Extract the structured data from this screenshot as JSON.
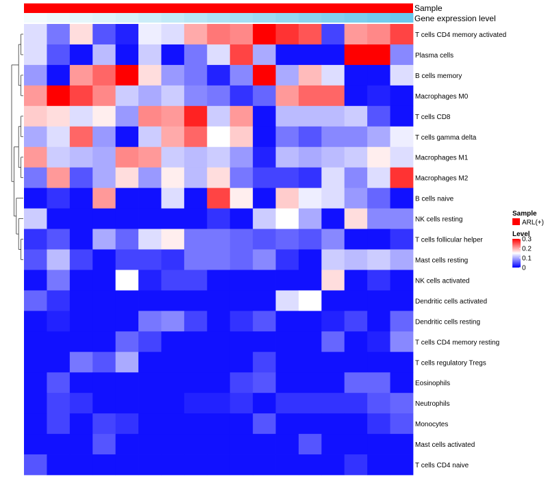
{
  "chart_data": {
    "type": "heatmap",
    "title": "",
    "annotation_rows": [
      {
        "name": "Sample",
        "kind": "categorical",
        "colors": [
          "#ff0000"
        ]
      },
      {
        "name": "Gene expression level",
        "kind": "continuous",
        "gradient": [
          "#f4fbfd",
          "#d6f1f9",
          "#ade2f5",
          "#8ad4f0",
          "#6ac8ee"
        ]
      }
    ],
    "rows": [
      "T cells CD4 memory activated",
      "Plasma cells",
      "B cells memory",
      "Macrophages M0",
      "T cells CD8",
      "T cells gamma delta",
      "Macrophages M1",
      "Macrophages M2",
      "B cells naive",
      "NK cells resting",
      "T cells follicular helper",
      "Mast cells resting",
      "NK cells activated",
      "Dendritic cells activated",
      "Dendritic cells resting",
      "T cells CD4 memory resting",
      "T cells regulatory  Tregs",
      "Eosinophils",
      "Neutrophils",
      "Monocytes",
      "Mast cells activated",
      "T cells CD4 naive"
    ],
    "n_columns": 17,
    "values": [
      [
        0.13,
        0.07,
        0.17,
        0.05,
        0.02,
        0.14,
        0.13,
        0.2,
        0.23,
        0.22,
        0.3,
        0.27,
        0.25,
        0.04,
        0.21,
        0.22,
        0.26
      ],
      [
        0.13,
        0.05,
        0.01,
        0.11,
        0.01,
        0.12,
        0.01,
        0.07,
        0.13,
        0.26,
        0.1,
        0.01,
        0.01,
        0.01,
        0.3,
        0.3,
        0.08
      ],
      [
        0.09,
        0.01,
        0.21,
        0.24,
        0.3,
        0.17,
        0.09,
        0.07,
        0.02,
        0.08,
        0.3,
        0.1,
        0.19,
        0.13,
        0.01,
        0.01,
        0.13
      ],
      [
        0.21,
        0.3,
        0.26,
        0.22,
        0.12,
        0.1,
        0.12,
        0.08,
        0.07,
        0.03,
        0.06,
        0.21,
        0.24,
        0.24,
        0.01,
        0.02,
        0.01
      ],
      [
        0.18,
        0.17,
        0.13,
        0.16,
        0.09,
        0.22,
        0.21,
        0.28,
        0.12,
        0.21,
        0.01,
        0.11,
        0.11,
        0.11,
        0.12,
        0.05,
        0.01
      ],
      [
        0.1,
        0.13,
        0.24,
        0.09,
        0.01,
        0.12,
        0.2,
        0.24,
        0.15,
        0.18,
        0.01,
        0.07,
        0.05,
        0.08,
        0.08,
        0.1,
        0.14
      ],
      [
        0.21,
        0.12,
        0.11,
        0.1,
        0.22,
        0.21,
        0.12,
        0.11,
        0.12,
        0.09,
        0.02,
        0.11,
        0.1,
        0.11,
        0.12,
        0.16,
        0.13
      ],
      [
        0.07,
        0.21,
        0.05,
        0.1,
        0.17,
        0.09,
        0.16,
        0.11,
        0.17,
        0.07,
        0.04,
        0.04,
        0.03,
        0.13,
        0.08,
        0.13,
        0.27
      ],
      [
        0.01,
        0.03,
        0.01,
        0.21,
        0.01,
        0.01,
        0.13,
        0.01,
        0.26,
        0.16,
        0.01,
        0.18,
        0.14,
        0.13,
        0.09,
        0.06,
        0.01
      ],
      [
        0.12,
        0.01,
        0.01,
        0.01,
        0.01,
        0.01,
        0.01,
        0.01,
        0.03,
        0.01,
        0.12,
        0.15,
        0.1,
        0.01,
        0.17,
        0.08,
        0.08
      ],
      [
        0.03,
        0.05,
        0.01,
        0.1,
        0.06,
        0.13,
        0.16,
        0.07,
        0.07,
        0.06,
        0.05,
        0.06,
        0.05,
        0.08,
        0.01,
        0.01,
        0.03
      ],
      [
        0.05,
        0.11,
        0.04,
        0.01,
        0.04,
        0.04,
        0.03,
        0.07,
        0.07,
        0.06,
        0.08,
        0.03,
        0.01,
        0.12,
        0.11,
        0.12,
        0.1
      ],
      [
        0.01,
        0.07,
        0.01,
        0.01,
        0.15,
        0.02,
        0.04,
        0.04,
        0.01,
        0.01,
        0.01,
        0.01,
        0.01,
        0.17,
        0.01,
        0.03,
        0.01
      ],
      [
        0.06,
        0.03,
        0.01,
        0.01,
        0.01,
        0.01,
        0.01,
        0.01,
        0.01,
        0.01,
        0.01,
        0.13,
        0.15,
        0.01,
        0.01,
        0.01,
        0.01
      ],
      [
        0.01,
        0.02,
        0.01,
        0.01,
        0.01,
        0.07,
        0.08,
        0.04,
        0.01,
        0.03,
        0.05,
        0.01,
        0.01,
        0.02,
        0.04,
        0.01,
        0.06
      ],
      [
        0.01,
        0.01,
        0.01,
        0.01,
        0.06,
        0.04,
        0.01,
        0.01,
        0.01,
        0.01,
        0.01,
        0.01,
        0.01,
        0.06,
        0.01,
        0.02,
        0.08
      ],
      [
        0.01,
        0.01,
        0.07,
        0.05,
        0.1,
        0.01,
        0.01,
        0.01,
        0.01,
        0.01,
        0.04,
        0.01,
        0.01,
        0.01,
        0.01,
        0.01,
        0.01
      ],
      [
        0.01,
        0.05,
        0.01,
        0.01,
        0.01,
        0.01,
        0.01,
        0.01,
        0.01,
        0.04,
        0.05,
        0.01,
        0.01,
        0.01,
        0.06,
        0.06,
        0.01
      ],
      [
        0.01,
        0.04,
        0.03,
        0.01,
        0.01,
        0.01,
        0.01,
        0.02,
        0.02,
        0.03,
        0.01,
        0.03,
        0.03,
        0.03,
        0.03,
        0.05,
        0.06
      ],
      [
        0.01,
        0.04,
        0.01,
        0.04,
        0.03,
        0.01,
        0.01,
        0.01,
        0.01,
        0.01,
        0.05,
        0.01,
        0.01,
        0.01,
        0.01,
        0.03,
        0.05
      ],
      [
        0.01,
        0.01,
        0.01,
        0.05,
        0.01,
        0.01,
        0.01,
        0.01,
        0.01,
        0.01,
        0.01,
        0.01,
        0.05,
        0.01,
        0.01,
        0.01,
        0.01
      ],
      [
        0.05,
        0.01,
        0.01,
        0.01,
        0.01,
        0.01,
        0.01,
        0.01,
        0.01,
        0.01,
        0.01,
        0.01,
        0.01,
        0.01,
        0.03,
        0.01,
        0.01
      ]
    ],
    "color_scale": {
      "min": 0,
      "max": 0.3,
      "low": "#0000ff",
      "mid": "#ffffff",
      "high": "#ff0000",
      "mid_value": 0.15
    },
    "legend": {
      "sample_title": "Sample",
      "sample_item": "ARL(+)",
      "sample_color": "#ff0000",
      "level_title": "Level",
      "level_ticks": [
        "0.3",
        "0.2",
        "0.1",
        "0"
      ],
      "level_tick_values": [
        0.3,
        0.2,
        0.1,
        0
      ],
      "position": "right"
    },
    "dendrogram": "left"
  }
}
